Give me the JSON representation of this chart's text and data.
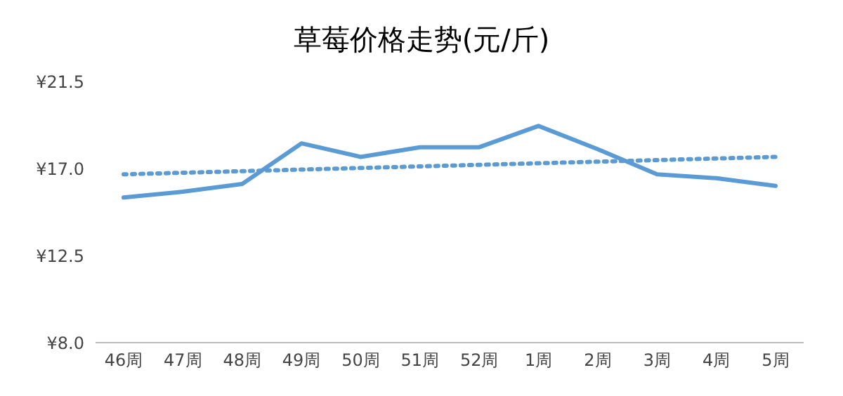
{
  "chart_data": {
    "type": "line",
    "title": "草莓价格走势(元/斤)",
    "categories": [
      "46周",
      "47周",
      "48周",
      "49周",
      "50周",
      "51周",
      "52周",
      "1周",
      "2周",
      "3周",
      "4周",
      "5周"
    ],
    "series": [
      {
        "color": "#5b9bd5",
        "values": [
          15.5,
          15.8,
          16.2,
          18.3,
          17.6,
          18.1,
          18.1,
          19.2,
          18.0,
          16.7,
          16.5,
          16.1
        ]
      },
      {
        "type": "line",
        "line_style": "dotted",
        "color": "#5b9bd5",
        "values": [
          16.7,
          null,
          null,
          null,
          null,
          null,
          null,
          null,
          null,
          null,
          null,
          17.6
        ]
      }
    ],
    "ylim": [
      8,
      21.5
    ],
    "yticks": [
      {
        "value": 8,
        "label": "¥8.0"
      },
      {
        "value": 12.5,
        "label": "¥12.5"
      },
      {
        "value": 17,
        "label": "¥17.0"
      },
      {
        "value": 21.5,
        "label": "¥21.5"
      }
    ],
    "grid": false,
    "marker": "none",
    "line_style": "solid"
  }
}
